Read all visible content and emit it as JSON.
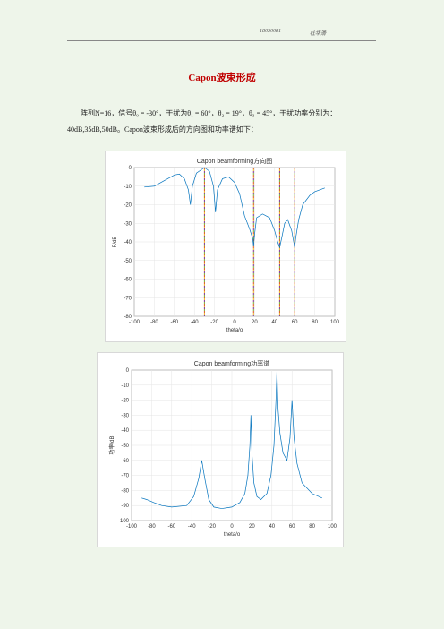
{
  "header": {
    "id": "18030081",
    "author": "杜华滑"
  },
  "title": "Capon波束形成",
  "paragraph": [
    "阵列N=16，信号θ₀ = -30°，干扰为θ₁ = 60°，θ₂ = 19°，θ₃ = 45°，干扰功率分别为：",
    "40dB,35dB,50dB。Capon波束形成后的方向图和功率谱如下："
  ],
  "chart_data": [
    {
      "type": "line",
      "title": "Capon beamforming方向图",
      "xlabel": "theta/o",
      "ylabel": "F/dB",
      "xlim": [
        -100,
        100
      ],
      "xticks": [
        -100,
        -80,
        -60,
        -40,
        -20,
        0,
        20,
        40,
        60,
        80,
        100
      ],
      "ylim": [
        -80,
        0
      ],
      "yticks": [
        -80,
        -70,
        -60,
        -50,
        -40,
        -30,
        -20,
        -10,
        0
      ],
      "grid": true,
      "vlines": [
        -30,
        19,
        45,
        60
      ],
      "vline_colors": [
        "#d95319",
        "#edb120",
        "#7e2f8e",
        "#77ac30"
      ],
      "series": [
        {
          "color": "#0072bd",
          "x": [
            -90,
            -80,
            -70,
            -60,
            -55,
            -50,
            -46,
            -44,
            -42,
            -38,
            -30,
            -25,
            -21,
            -19,
            -17,
            -12,
            -6,
            0,
            5,
            10,
            15,
            18,
            19,
            20,
            22,
            28,
            35,
            40,
            43,
            45,
            47,
            50,
            53,
            57,
            59,
            60,
            61,
            64,
            68,
            75,
            80,
            90
          ],
          "values": [
            -10.5,
            -10,
            -7,
            -4,
            -3.5,
            -6,
            -12,
            -20,
            -10,
            -3,
            0,
            -2,
            -10,
            -24,
            -12,
            -6,
            -5,
            -8,
            -14,
            -26,
            -33,
            -38,
            -42,
            -36,
            -27,
            -25,
            -27,
            -34,
            -40,
            -43,
            -38,
            -30,
            -28,
            -34,
            -40,
            -43,
            -38,
            -28,
            -20,
            -15,
            -13,
            -11
          ]
        }
      ]
    },
    {
      "type": "line",
      "title": "Capon beamforming功率谱",
      "xlabel": "theta/o",
      "ylabel": "功率/dB",
      "xlim": [
        -100,
        100
      ],
      "xticks": [
        -100,
        -80,
        -60,
        -40,
        -20,
        0,
        20,
        40,
        60,
        80,
        100
      ],
      "ylim": [
        -100,
        0
      ],
      "yticks": [
        -100,
        -90,
        -80,
        -70,
        -60,
        -50,
        -40,
        -30,
        -20,
        -10,
        0
      ],
      "grid": true,
      "series": [
        {
          "color": "#0072bd",
          "x": [
            -90,
            -85,
            -78,
            -70,
            -60,
            -45,
            -38,
            -33,
            -30,
            -27,
            -23,
            -18,
            -10,
            0,
            8,
            13,
            16,
            18,
            19,
            20,
            22,
            25,
            29,
            35,
            39,
            42,
            44,
            45,
            46,
            48,
            51,
            55,
            58,
            60,
            62,
            65,
            70,
            80,
            90
          ],
          "values": [
            -85,
            -86,
            -88,
            -90,
            -91,
            -90,
            -84,
            -72,
            -60,
            -72,
            -86,
            -91,
            -92,
            -91,
            -88,
            -82,
            -70,
            -50,
            -30,
            -55,
            -75,
            -84,
            -86,
            -82,
            -70,
            -50,
            -20,
            0,
            -25,
            -42,
            -55,
            -60,
            -45,
            -20,
            -45,
            -62,
            -75,
            -82,
            -85
          ]
        }
      ]
    }
  ]
}
